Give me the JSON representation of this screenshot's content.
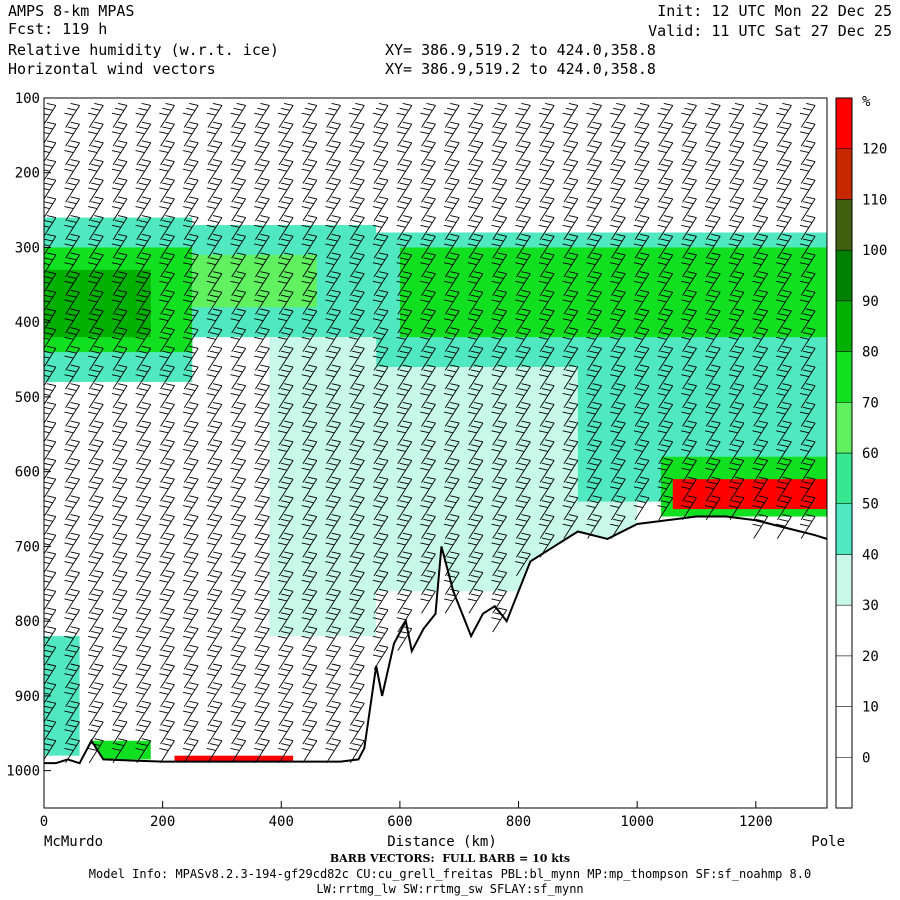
{
  "header": {
    "model": "AMPS 8-km MPAS",
    "fcst": "Fcst: 119 h",
    "field1": "Relative humidity (w.r.t. ice)",
    "field2": "Horizontal wind vectors",
    "init": "Init: 12 UTC Mon 22 Dec 25",
    "valid": "Valid: 11 UTC Sat 27 Dec 25",
    "xy1": "XY= 386.9,519.2 to 424.0,358.8",
    "xy2": "XY= 386.9,519.2 to 424.0,358.8"
  },
  "footer": {
    "barb": "BARB VECTORS:  FULL BARB = 10 kts",
    "model_info": "Model Info: MPASv8.2.3-194-gf29cd82c CU:cu_grell_freitas PBL:bl_mynn MP:mp_thompson SF:sf_noahmp 8.0",
    "model_info2": "LW:rrtmg_lw SW:rrtmg_sw SFLAY:sf_mynn"
  },
  "chart_data": {
    "type": "heatmap",
    "xlabel": "Distance (km)",
    "x_range": [
      0,
      1320
    ],
    "x_ticks": [
      0,
      200,
      400,
      600,
      800,
      1000,
      1200
    ],
    "x_end_labels": {
      "left": "McMurdo",
      "right": "Pole"
    },
    "y_range": [
      100,
      1050
    ],
    "y_ticks": [
      100,
      200,
      300,
      400,
      500,
      600,
      700,
      800,
      900,
      1000
    ],
    "y_inverted": true,
    "colorbar": {
      "unit": "%",
      "levels": [
        -10,
        0,
        10,
        20,
        30,
        40,
        50,
        60,
        70,
        80,
        90,
        100,
        110,
        120,
        130
      ],
      "labels": [
        0,
        10,
        20,
        30,
        40,
        50,
        60,
        70,
        80,
        90,
        100,
        110,
        120
      ],
      "colors": [
        "#ffffff",
        "#ffffff",
        "#ffffff",
        "#ffffff",
        "#c8f8e8",
        "#50e8c0",
        "#38e890",
        "#60f060",
        "#10e020",
        "#00b000",
        "#008000",
        "#406010",
        "#c82800",
        "#ff0000"
      ]
    },
    "terrain_surface": [
      [
        0,
        990
      ],
      [
        20,
        990
      ],
      [
        40,
        985
      ],
      [
        60,
        990
      ],
      [
        80,
        960
      ],
      [
        100,
        985
      ],
      [
        200,
        988
      ],
      [
        300,
        988
      ],
      [
        400,
        988
      ],
      [
        500,
        988
      ],
      [
        530,
        985
      ],
      [
        540,
        970
      ],
      [
        560,
        860
      ],
      [
        570,
        900
      ],
      [
        590,
        830
      ],
      [
        610,
        800
      ],
      [
        620,
        840
      ],
      [
        640,
        810
      ],
      [
        660,
        790
      ],
      [
        670,
        700
      ],
      [
        690,
        760
      ],
      [
        720,
        820
      ],
      [
        740,
        790
      ],
      [
        760,
        780
      ],
      [
        780,
        800
      ],
      [
        800,
        760
      ],
      [
        820,
        720
      ],
      [
        860,
        700
      ],
      [
        900,
        680
      ],
      [
        950,
        690
      ],
      [
        1000,
        670
      ],
      [
        1050,
        665
      ],
      [
        1100,
        660
      ],
      [
        1150,
        660
      ],
      [
        1200,
        665
      ],
      [
        1250,
        675
      ],
      [
        1300,
        685
      ],
      [
        1320,
        690
      ]
    ],
    "rh_bands": [
      {
        "x": [
          0,
          250
        ],
        "p": [
          260,
          480
        ],
        "rh": 45
      },
      {
        "x": [
          0,
          250
        ],
        "p": [
          300,
          440
        ],
        "rh": 70
      },
      {
        "x": [
          0,
          180
        ],
        "p": [
          330,
          420
        ],
        "rh": 85
      },
      {
        "x": [
          250,
          560
        ],
        "p": [
          270,
          420
        ],
        "rh": 45
      },
      {
        "x": [
          250,
          460
        ],
        "p": [
          310,
          380
        ],
        "rh": 65
      },
      {
        "x": [
          560,
          1320
        ],
        "p": [
          280,
          460
        ],
        "rh": 45
      },
      {
        "x": [
          600,
          1320
        ],
        "p": [
          300,
          420
        ],
        "rh": 70
      },
      {
        "x": [
          700,
          1320
        ],
        "p": [
          320,
          400
        ],
        "rh": 75
      },
      {
        "x": [
          380,
          560
        ],
        "p": [
          420,
          820
        ],
        "rh": 35
      },
      {
        "x": [
          560,
          1000
        ],
        "p": [
          460,
          760
        ],
        "rh": 35
      },
      {
        "x": [
          900,
          1320
        ],
        "p": [
          460,
          640
        ],
        "rh": 45
      },
      {
        "x": [
          1040,
          1320
        ],
        "p": [
          580,
          660
        ],
        "rh": 75
      },
      {
        "x": [
          1060,
          1320
        ],
        "p": [
          610,
          650
        ],
        "rh": 125
      },
      {
        "x": [
          0,
          60
        ],
        "p": [
          820,
          980
        ],
        "rh": 40
      },
      {
        "x": [
          80,
          180
        ],
        "p": [
          960,
          985
        ],
        "rh": 75
      },
      {
        "x": [
          220,
          420
        ],
        "p": [
          980,
          992
        ],
        "rh": 125
      }
    ],
    "wind_barb_columns_km": [
      20,
      60,
      100,
      140,
      180,
      220,
      260,
      300,
      340,
      380,
      420,
      460,
      500,
      540,
      580,
      620,
      660,
      700,
      740,
      780,
      820,
      860,
      900,
      940,
      980,
      1020,
      1060,
      1100,
      1140,
      1180,
      1220,
      1260,
      1300
    ]
  }
}
